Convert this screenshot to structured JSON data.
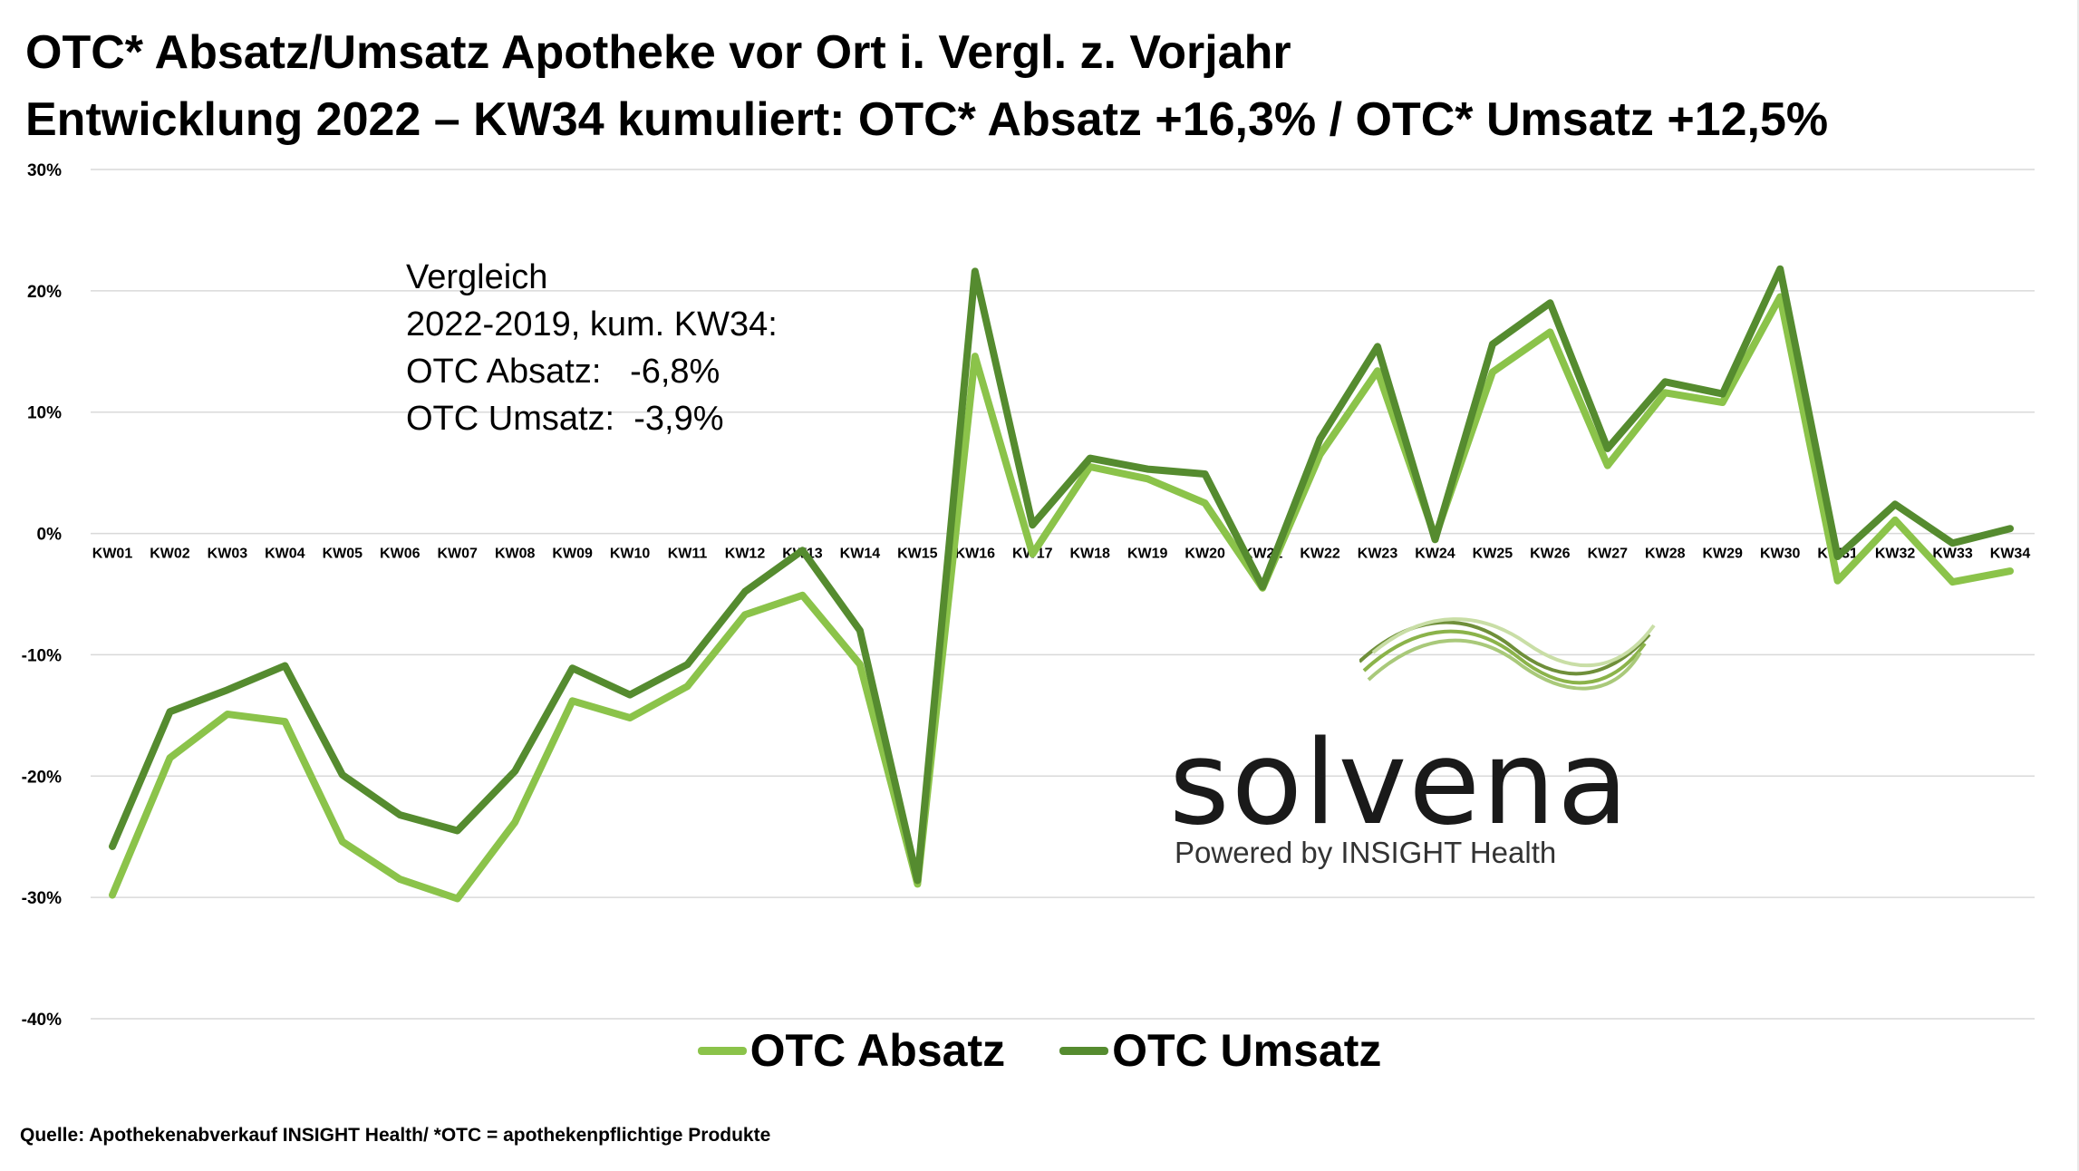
{
  "title_line1": "OTC* Absatz/Umsatz Apotheke vor Ort i. Vergl. z. Vorjahr",
  "title_line2": "Entwicklung 2022 – KW34 kumuliert: OTC* Absatz +16,3% / OTC* Umsatz +12,5%",
  "annotation": {
    "line1": "Vergleich",
    "line2": "2022-2019, kum. KW34:",
    "line3": "OTC Absatz:   -6,8%",
    "line4": "OTC Umsatz:  -3,9%"
  },
  "logo": {
    "word": "solvena",
    "tagline": "Powered by INSIGHT Health"
  },
  "source": "Quelle: Apothekenabverkauf INSIGHT Health/ *OTC = apothekenpflichtige Produkte",
  "colors": {
    "absatz": "#8BC34A",
    "umsatz": "#558B2F",
    "grid": "#d9d9d9"
  },
  "chart_data": {
    "type": "line",
    "categories": [
      "KW01",
      "KW02",
      "KW03",
      "KW04",
      "KW05",
      "KW06",
      "KW07",
      "KW08",
      "KW09",
      "KW10",
      "KW11",
      "KW12",
      "KW13",
      "KW14",
      "KW15",
      "KW16",
      "KW17",
      "KW18",
      "KW19",
      "KW20",
      "KW21",
      "KW22",
      "KW23",
      "KW24",
      "KW25",
      "KW26",
      "KW27",
      "KW28",
      "KW29",
      "KW30",
      "KW31",
      "KW32",
      "KW33",
      "KW34"
    ],
    "y_ticks": [
      "30%",
      "20%",
      "10%",
      "0%",
      "-10%",
      "-20%",
      "-30%",
      "-40%"
    ],
    "ylim": [
      -40,
      30
    ],
    "grid": true,
    "legend_position": "bottom",
    "series": [
      {
        "name": "OTC Absatz",
        "color": "#8BC34A",
        "values": [
          -29.8,
          -18.5,
          -14.9,
          -15.5,
          -25.4,
          -28.5,
          -30.1,
          -23.8,
          -13.8,
          -15.2,
          -12.6,
          -6.7,
          -5.1,
          -10.8,
          -28.9,
          14.6,
          -1.7,
          5.5,
          4.5,
          2.5,
          -4.5,
          6.5,
          13.4,
          -0.3,
          13.3,
          16.6,
          5.6,
          11.6,
          10.8,
          19.5,
          -3.9,
          1.1,
          -4.0,
          -3.1
        ]
      },
      {
        "name": "OTC Umsatz",
        "color": "#558B2F",
        "values": [
          -25.8,
          -14.7,
          -12.9,
          -10.9,
          -19.9,
          -23.2,
          -24.5,
          -19.6,
          -11.1,
          -13.3,
          -10.8,
          -4.8,
          -1.4,
          -8.0,
          -28.6,
          21.6,
          0.7,
          6.2,
          5.3,
          4.9,
          -4.4,
          7.8,
          15.4,
          -0.5,
          15.6,
          19.0,
          7.0,
          12.5,
          11.5,
          21.8,
          -1.9,
          2.4,
          -0.8,
          0.4
        ]
      }
    ]
  }
}
